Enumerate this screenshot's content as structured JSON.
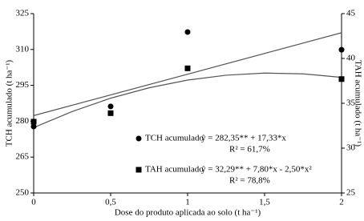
{
  "chart_data": {
    "type": "scatter",
    "xlabel": "Dose do produto aplicada ao solo (t ha⁻¹)",
    "ylabel": "TCH acumulado (t ha⁻¹)",
    "y2label": "TAH acumulado (t ha⁻¹)",
    "xlim": [
      0,
      2
    ],
    "xticks": [
      0,
      {
        "value": 0.5,
        "label": "0,5"
      },
      1,
      {
        "value": 1.5,
        "label": "1,5"
      },
      2
    ],
    "ylim": [
      250,
      325
    ],
    "yticks": [
      250,
      265,
      280,
      295,
      310,
      325
    ],
    "y2lim": [
      25,
      45
    ],
    "y2ticks": [
      25,
      30,
      35,
      40,
      45
    ],
    "series": [
      {
        "name": "TCH acumulado",
        "color": "#000000",
        "marker": "circle",
        "axis": "y",
        "x": [
          0,
          0.5,
          1,
          2
        ],
        "values": [
          277.8,
          286.2,
          317.3,
          309.9
        ],
        "equation": "ŷ = 282,35** + 17,33*x",
        "r2": "R² = 61,7%"
      },
      {
        "name": "TAH acumulado",
        "color": "#000000",
        "marker": "square",
        "axis": "y2",
        "x": [
          0,
          0.5,
          1,
          2
        ],
        "values": [
          32.95,
          33.9,
          38.9,
          37.7
        ],
        "equation": "ŷ = 32,29** + 7,80*x - 2,50*x²",
        "r2": "R² = 78,8%"
      }
    ],
    "trendlines": [
      {
        "axis": "y",
        "color": "#555555",
        "x": [
          0,
          2
        ],
        "values": [
          282.35,
          317.01
        ]
      },
      {
        "axis": "y2",
        "color": "#555555",
        "x": [
          0,
          0.25,
          0.5,
          0.75,
          1,
          1.25,
          1.5,
          1.75,
          2
        ],
        "values": [
          32.29,
          34.08,
          35.57,
          36.73,
          37.59,
          38.13,
          38.37,
          38.28,
          37.89
        ]
      }
    ]
  }
}
